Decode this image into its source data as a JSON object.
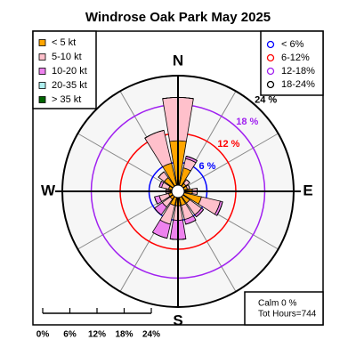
{
  "chart_data": {
    "type": "windrose",
    "title": "Windrose  Oak Park May 2025",
    "categories": [
      "N",
      null,
      null,
      null,
      "E",
      null,
      null,
      null,
      "S",
      null,
      null,
      null,
      "W",
      null,
      null,
      null
    ],
    "series": [
      {
        "name": "< 5  kt",
        "color": "#FFA500",
        "values": [
          10.5,
          5,
          2,
          2,
          3,
          5,
          3,
          3,
          3,
          3,
          2,
          2,
          1.5,
          2,
          3.5,
          6
        ]
      },
      {
        "name": "5-10 kt",
        "color": "#FFC0CB",
        "values": [
          9,
          2,
          1,
          0.5,
          1,
          4,
          3,
          3,
          3,
          4,
          2,
          2,
          1,
          1.5,
          1.5,
          7
        ]
      },
      {
        "name": "10-20 kt",
        "color": "#EE82EE",
        "values": [
          0,
          0.5,
          0,
          0,
          0,
          0.5,
          0.5,
          1,
          4,
          3,
          2,
          1,
          0,
          0.5,
          0,
          0
        ]
      },
      {
        "name": "20-35 kt",
        "color": "#AEEEEE",
        "values": [
          0,
          0,
          0,
          0,
          0,
          0,
          0,
          0,
          0,
          0,
          0,
          0,
          0,
          0,
          0,
          0
        ]
      },
      {
        "name": "> 35 kt",
        "color": "#006400",
        "values": [
          0,
          0,
          0,
          0,
          0,
          0,
          0,
          0,
          0,
          0,
          0,
          0,
          0,
          0,
          0,
          0
        ]
      }
    ],
    "rlim": [
      0,
      24
    ],
    "rticks": [
      {
        "value": 6,
        "label": "6 %"
      },
      {
        "value": 12,
        "label": "12 %"
      },
      {
        "value": 18,
        "label": "18 %"
      },
      {
        "value": 24,
        "label": "24 %"
      }
    ],
    "ring_colors": [
      "#0000FF",
      "#FF0000",
      "#A020F0",
      "#000000"
    ],
    "ring_legend": [
      "< 6%",
      "6-12%",
      "12-18%",
      "18-24%"
    ],
    "scale_ticks": [
      {
        "value": 0,
        "label": "0%"
      },
      {
        "value": 6,
        "label": "6%"
      },
      {
        "value": 12,
        "label": "12%"
      },
      {
        "value": 18,
        "label": "18%"
      },
      {
        "value": 24,
        "label": "24%"
      }
    ],
    "calm_label": "Calm 0 %",
    "total_label": "Tot Hours=744"
  }
}
